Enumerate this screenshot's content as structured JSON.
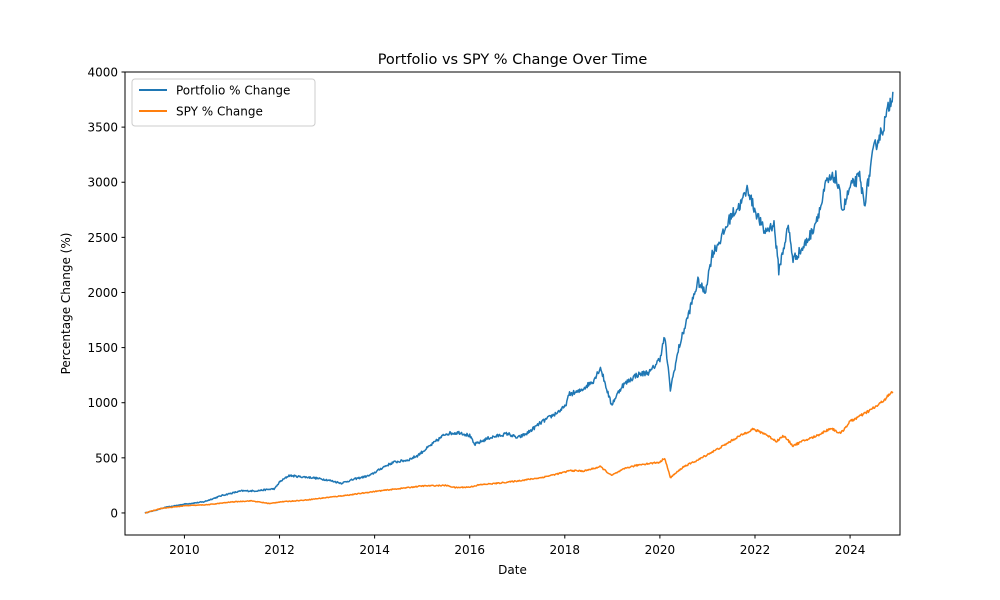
{
  "chart_data": {
    "type": "line",
    "title": "Portfolio vs SPY % Change Over Time",
    "xlabel": "Date",
    "ylabel": "Percentage Change (%)",
    "xlim": [
      2008.75,
      2025.05
    ],
    "ylim": [
      -200,
      4000
    ],
    "x_ticks": [
      2010,
      2012,
      2014,
      2016,
      2018,
      2020,
      2022,
      2024
    ],
    "x_tick_labels": [
      "2010",
      "2012",
      "2014",
      "2016",
      "2018",
      "2020",
      "2022",
      "2024"
    ],
    "y_ticks": [
      0,
      500,
      1000,
      1500,
      2000,
      2500,
      3000,
      3500,
      4000
    ],
    "y_tick_labels": [
      "0",
      "500",
      "1000",
      "1500",
      "2000",
      "2500",
      "3000",
      "3500",
      "4000"
    ],
    "grid": false,
    "legend_position": "top-left",
    "series": [
      {
        "name": "Portfolio % Change",
        "color": "#1f77b4",
        "x": [
          2009.17,
          2009.35,
          2009.6,
          2010.0,
          2010.4,
          2010.8,
          2011.2,
          2011.5,
          2011.9,
          2012.0,
          2012.2,
          2012.4,
          2012.7,
          2013.0,
          2013.3,
          2013.6,
          2013.9,
          2014.2,
          2014.4,
          2014.7,
          2014.9,
          2015.2,
          2015.5,
          2015.8,
          2016.0,
          2016.1,
          2016.4,
          2016.8,
          2017.0,
          2017.2,
          2017.5,
          2017.8,
          2018.0,
          2018.1,
          2018.3,
          2018.6,
          2018.75,
          2018.98,
          2019.2,
          2019.5,
          2019.8,
          2020.0,
          2020.1,
          2020.22,
          2020.4,
          2020.6,
          2020.8,
          2020.95,
          2021.1,
          2021.3,
          2021.5,
          2021.7,
          2021.85,
          2021.95,
          2022.2,
          2022.4,
          2022.5,
          2022.7,
          2022.8,
          2023.0,
          2023.2,
          2023.4,
          2023.5,
          2023.7,
          2023.85,
          2024.0,
          2024.2,
          2024.3,
          2024.5,
          2024.7,
          2024.9
        ],
        "values": [
          0,
          20,
          50,
          80,
          100,
          160,
          200,
          200,
          220,
          280,
          340,
          330,
          320,
          300,
          270,
          310,
          340,
          420,
          460,
          480,
          520,
          620,
          720,
          730,
          700,
          620,
          680,
          720,
          680,
          720,
          820,
          900,
          960,
          1080,
          1100,
          1200,
          1320,
          980,
          1150,
          1250,
          1280,
          1400,
          1600,
          1120,
          1500,
          1800,
          2100,
          2000,
          2350,
          2500,
          2700,
          2800,
          2950,
          2800,
          2550,
          2620,
          2200,
          2600,
          2300,
          2400,
          2550,
          2800,
          3000,
          3050,
          2750,
          2950,
          3050,
          2800,
          3300,
          3500,
          3820
        ]
      },
      {
        "name": "SPY % Change",
        "color": "#ff7f0e",
        "x": [
          2009.17,
          2009.5,
          2010.0,
          2010.5,
          2011.0,
          2011.4,
          2011.8,
          2012.0,
          2012.5,
          2013.0,
          2013.5,
          2014.0,
          2014.5,
          2015.0,
          2015.5,
          2015.7,
          2016.0,
          2016.2,
          2016.6,
          2017.0,
          2017.5,
          2018.0,
          2018.1,
          2018.4,
          2018.75,
          2018.98,
          2019.3,
          2019.6,
          2020.0,
          2020.1,
          2020.22,
          2020.5,
          2020.8,
          2021.0,
          2021.3,
          2021.6,
          2021.95,
          2022.2,
          2022.45,
          2022.6,
          2022.8,
          2023.0,
          2023.3,
          2023.6,
          2023.8,
          2024.0,
          2024.3,
          2024.6,
          2024.9
        ],
        "values": [
          0,
          40,
          65,
          75,
          100,
          110,
          85,
          100,
          115,
          140,
          165,
          195,
          220,
          245,
          250,
          230,
          235,
          255,
          270,
          290,
          320,
          370,
          385,
          380,
          420,
          340,
          410,
          440,
          460,
          500,
          320,
          420,
          480,
          530,
          600,
          680,
          760,
          720,
          650,
          700,
          610,
          650,
          700,
          770,
          720,
          830,
          900,
          980,
          1100
        ]
      }
    ]
  }
}
